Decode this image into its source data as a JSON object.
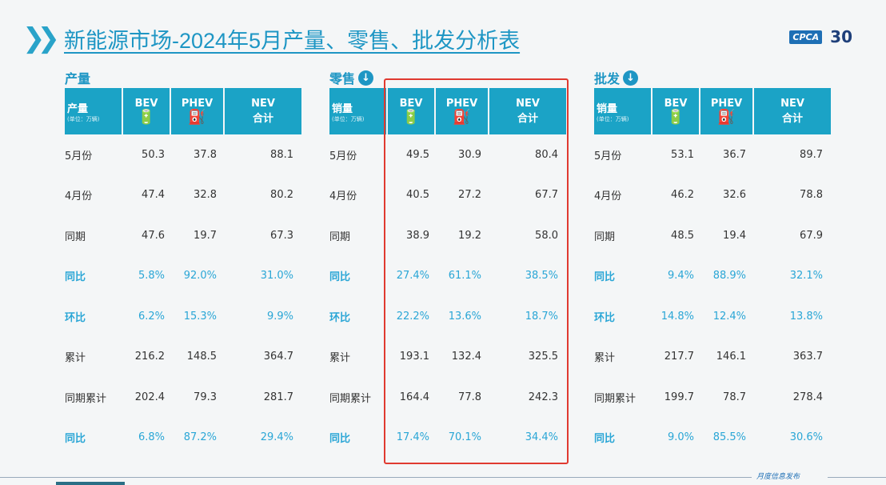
{
  "header": {
    "title": "新能源市场-2024年5月产量、零售、批发分析表",
    "logo_text": "CPCA",
    "anniversary": "30"
  },
  "columns": {
    "bev": "BEV",
    "phev": "PHEV",
    "nev": "NEV",
    "nev_sub": "合计",
    "unit": "(单位：万辆)"
  },
  "sections": [
    {
      "title": "产量",
      "label": "产量",
      "rows": [
        [
          "5月份",
          "50.3",
          "37.8",
          "88.1"
        ],
        [
          "4月份",
          "47.4",
          "32.8",
          "80.2"
        ],
        [
          "同期",
          "47.6",
          "19.7",
          "67.3"
        ],
        [
          "同比",
          "5.8%",
          "92.0%",
          "31.0%"
        ],
        [
          "环比",
          "6.2%",
          "15.3%",
          "9.9%"
        ],
        [
          "累计",
          "216.2",
          "148.5",
          "364.7"
        ],
        [
          "同期累计",
          "202.4",
          "79.3",
          "281.7"
        ],
        [
          "同比",
          "6.8%",
          "87.2%",
          "29.4%"
        ]
      ]
    },
    {
      "title": "零售",
      "label": "销量",
      "rows": [
        [
          "5月份",
          "49.5",
          "30.9",
          "80.4"
        ],
        [
          "4月份",
          "40.5",
          "27.2",
          "67.7"
        ],
        [
          "同期",
          "38.9",
          "19.2",
          "58.0"
        ],
        [
          "同比",
          "27.4%",
          "61.1%",
          "38.5%"
        ],
        [
          "环比",
          "22.2%",
          "13.6%",
          "18.7%"
        ],
        [
          "累计",
          "193.1",
          "132.4",
          "325.5"
        ],
        [
          "同期累计",
          "164.4",
          "77.8",
          "242.3"
        ],
        [
          "同比",
          "17.4%",
          "70.1%",
          "34.4%"
        ]
      ]
    },
    {
      "title": "批发",
      "label": "销量",
      "rows": [
        [
          "5月份",
          "53.1",
          "36.7",
          "89.7"
        ],
        [
          "4月份",
          "46.2",
          "32.6",
          "78.8"
        ],
        [
          "同期",
          "48.5",
          "19.4",
          "67.9"
        ],
        [
          "同比",
          "9.4%",
          "88.9%",
          "32.1%"
        ],
        [
          "环比",
          "14.8%",
          "12.4%",
          "13.8%"
        ],
        [
          "累计",
          "217.7",
          "146.1",
          "363.7"
        ],
        [
          "同期累计",
          "199.7",
          "78.7",
          "278.4"
        ],
        [
          "同比",
          "9.0%",
          "85.5%",
          "30.6%"
        ]
      ]
    }
  ],
  "footer": {
    "text": "月度信息发布"
  },
  "colors": {
    "accent": "#1ba3c6",
    "highlight": "#e03a30"
  }
}
